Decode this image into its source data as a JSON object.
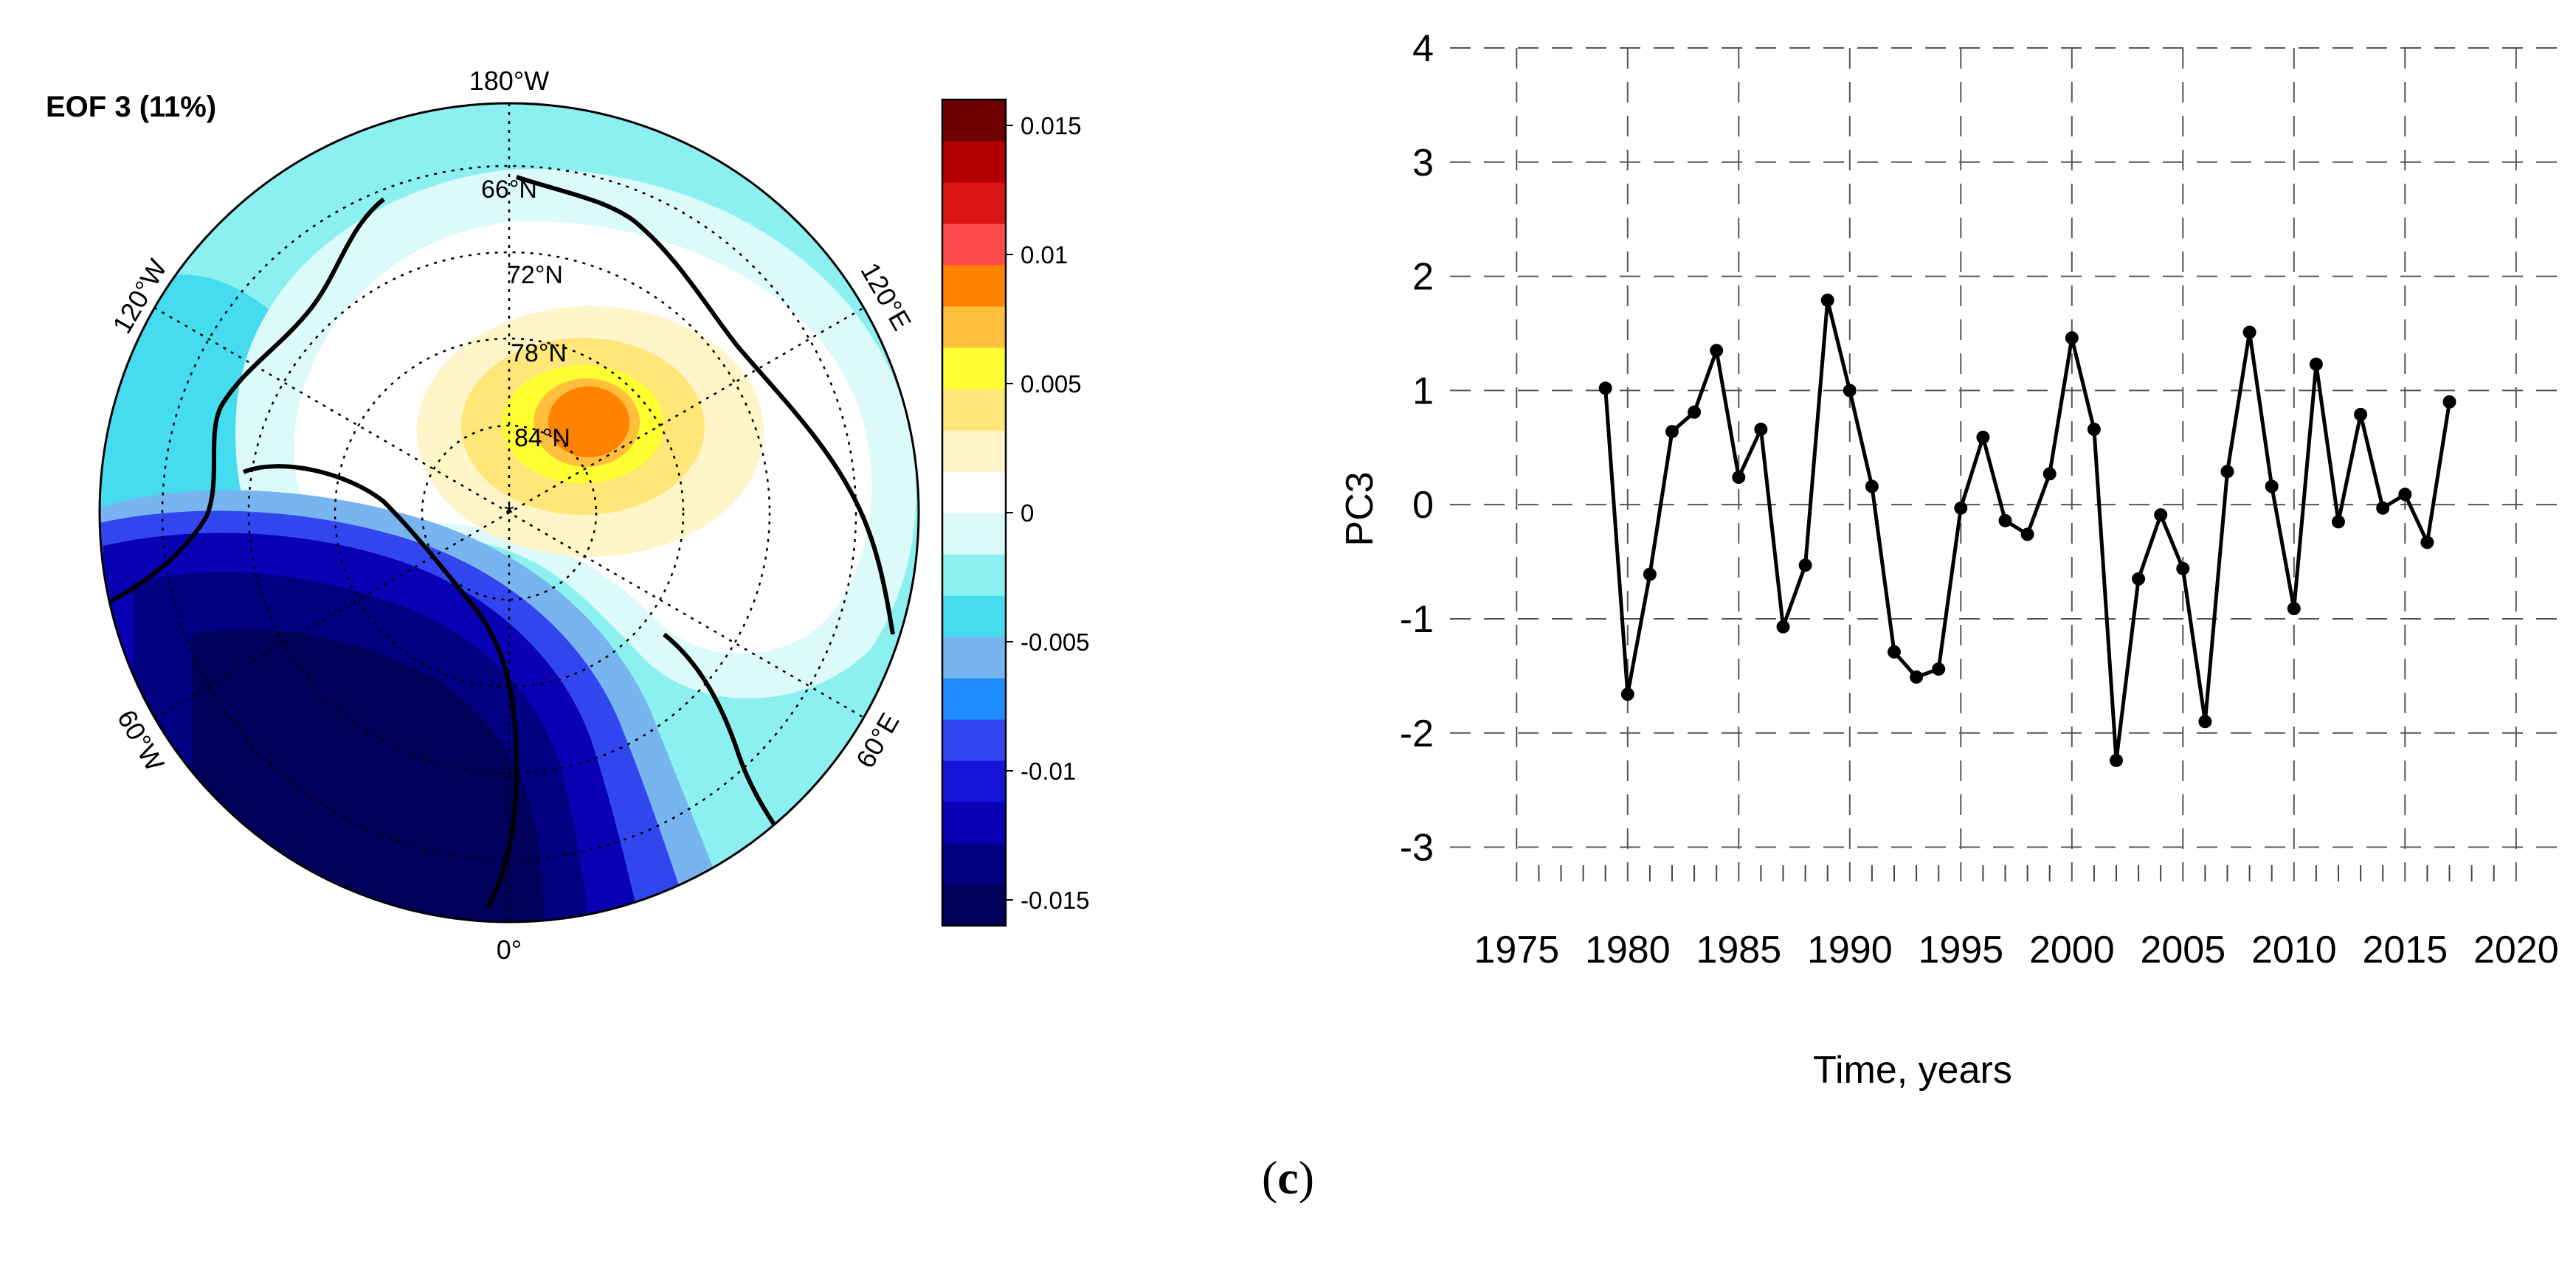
{
  "map": {
    "title": "EOF 3 (11%)",
    "lon_labels": [
      "180°W",
      "120°W",
      "120°E",
      "60°W",
      "60°E",
      "0°"
    ],
    "lat_labels": [
      "66°N",
      "72°N",
      "78°N",
      "84°N"
    ],
    "colorbar": {
      "min": -0.016,
      "max": 0.016,
      "colors": [
        "#00005a",
        "#000080",
        "#0a00b4",
        "#1414d8",
        "#3246f0",
        "#1e8cff",
        "#78b4f0",
        "#46dcf0",
        "#8cf0f0",
        "#dcfafa",
        "#ffffff",
        "#fff5c8",
        "#ffe678",
        "#ffff32",
        "#ffbe3c",
        "#ff8200",
        "#ff4b4b",
        "#dc1414",
        "#b40000",
        "#6e0000"
      ],
      "ticks": [
        {
          "value": 0.015,
          "label": "0.015"
        },
        {
          "value": 0.01,
          "label": "0.01"
        },
        {
          "value": 0.005,
          "label": "0.005"
        },
        {
          "value": 0,
          "label": "0"
        },
        {
          "value": -0.005,
          "label": "-0.005"
        },
        {
          "value": -0.01,
          "label": "-0.01"
        },
        {
          "value": -0.015,
          "label": "-0.015"
        }
      ]
    }
  },
  "chart_data": {
    "type": "line",
    "xlabel": "Time, years",
    "ylabel": "PC3",
    "xlim": [
      1972,
      2022
    ],
    "ylim": [
      -3.3,
      4.0
    ],
    "xticks": [
      1975,
      1980,
      1985,
      1990,
      1995,
      2000,
      2005,
      2010,
      2015,
      2020
    ],
    "yticks": [
      -3,
      -2,
      -1,
      0,
      1,
      2,
      3,
      4
    ],
    "grid": true,
    "series": [
      {
        "x": [
          1979,
          1980,
          1981,
          1982,
          1983,
          1984,
          1985,
          1986,
          1987,
          1988,
          1989,
          1990,
          1991,
          1992,
          1993,
          1994,
          1995,
          1996,
          1997,
          1998,
          1999,
          2000,
          2001,
          2002,
          2003,
          2004,
          2005,
          2006,
          2007,
          2008,
          2009,
          2010,
          2011,
          2012,
          2013,
          2014,
          2015,
          2016,
          2017
        ],
        "values": [
          1.02,
          -1.66,
          -0.61,
          0.64,
          0.81,
          1.35,
          0.24,
          0.66,
          -1.07,
          -0.53,
          1.79,
          1.0,
          0.16,
          -1.29,
          -1.51,
          -1.44,
          -0.03,
          0.59,
          -0.14,
          -0.26,
          0.27,
          1.46,
          0.66,
          -2.24,
          -0.65,
          -0.09,
          -0.56,
          -1.9,
          0.29,
          1.51,
          0.16,
          -0.91,
          1.23,
          -0.15,
          0.79,
          -0.03,
          0.09,
          -0.33,
          0.9
        ]
      }
    ]
  },
  "caption": {
    "open": "(",
    "letter": "c",
    "close": ")"
  }
}
